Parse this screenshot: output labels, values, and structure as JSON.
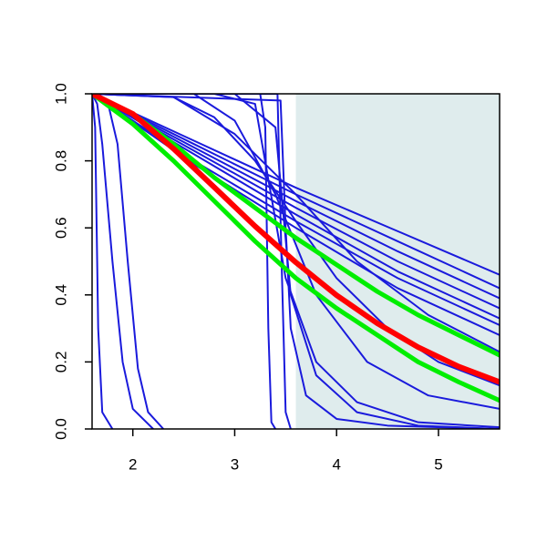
{
  "chart_data": {
    "type": "line",
    "xlim": [
      1.6,
      5.6
    ],
    "ylim": [
      0,
      1
    ],
    "xticks": [
      2,
      3,
      4,
      5
    ],
    "yticks": [
      {
        "value": 0,
        "label": "0.0"
      },
      0.2,
      0.4,
      0.6,
      0.8,
      {
        "value": 1,
        "label": "1.0"
      }
    ],
    "shaded_region": {
      "xmin": 3.6,
      "xmax": 5.6,
      "color": "#dfeced"
    },
    "series": [
      {
        "color": "#1a1adc",
        "width": 2,
        "x": [
          1.6,
          2.6,
          3.6,
          4.6,
          5.6
        ],
        "values": [
          1,
          0.86,
          0.72,
          0.59,
          0.46
        ]
      },
      {
        "color": "#1a1adc",
        "width": 2,
        "x": [
          1.6,
          2.6,
          3.6,
          4.6,
          5.6
        ],
        "values": [
          1,
          0.85,
          0.7,
          0.56,
          0.42
        ]
      },
      {
        "color": "#1a1adc",
        "width": 2,
        "x": [
          1.6,
          2.6,
          3.6,
          4.6,
          5.6
        ],
        "values": [
          1,
          0.84,
          0.68,
          0.53,
          0.39
        ]
      },
      {
        "color": "#1a1adc",
        "width": 2,
        "x": [
          1.6,
          2.6,
          3.6,
          4.6,
          5.6
        ],
        "values": [
          1,
          0.83,
          0.66,
          0.5,
          0.36
        ]
      },
      {
        "color": "#1a1adc",
        "width": 2,
        "x": [
          1.6,
          2.6,
          3.6,
          4.6,
          5.6
        ],
        "values": [
          1,
          0.82,
          0.64,
          0.47,
          0.33
        ]
      },
      {
        "color": "#1a1adc",
        "width": 2,
        "x": [
          1.6,
          2.6,
          3.6,
          4.6,
          5.6
        ],
        "values": [
          1,
          0.8,
          0.62,
          0.45,
          0.31
        ]
      },
      {
        "color": "#1a1adc",
        "width": 2,
        "x": [
          1.6,
          2.6,
          3.6,
          4.6,
          5.6
        ],
        "values": [
          1,
          0.79,
          0.6,
          0.42,
          0.28
        ]
      },
      {
        "color": "#1a1adc",
        "width": 2,
        "x": [
          1.6,
          2.4,
          3.0,
          3.6,
          4.2,
          4.9,
          5.6
        ],
        "values": [
          1,
          0.99,
          0.88,
          0.7,
          0.5,
          0.34,
          0.23
        ]
      },
      {
        "color": "#1a1adc",
        "width": 2,
        "x": [
          1.6,
          2.4,
          2.8,
          3.2,
          3.6,
          4.0,
          4.5,
          5.0,
          5.6
        ],
        "values": [
          1,
          0.99,
          0.93,
          0.8,
          0.62,
          0.45,
          0.3,
          0.2,
          0.13
        ]
      },
      {
        "color": "#1a1adc",
        "width": 2,
        "x": [
          1.6,
          2.6,
          3.0,
          3.4,
          3.8,
          4.3,
          4.9,
          5.6
        ],
        "values": [
          1,
          1,
          0.92,
          0.7,
          0.4,
          0.2,
          0.1,
          0.06
        ]
      },
      {
        "color": "#1a1adc",
        "width": 2,
        "x": [
          1.6,
          1.63,
          1.66,
          1.7,
          1.8
        ],
        "values": [
          1,
          0.9,
          0.3,
          0.05,
          0
        ]
      },
      {
        "color": "#1a1adc",
        "width": 2,
        "x": [
          1.6,
          1.65,
          1.7,
          1.8,
          1.9,
          2.0,
          2.2
        ],
        "values": [
          1,
          0.97,
          0.85,
          0.5,
          0.2,
          0.06,
          0
        ]
      },
      {
        "color": "#1a1adc",
        "width": 2,
        "x": [
          1.6,
          1.75,
          1.85,
          1.95,
          2.05,
          2.15,
          2.3
        ],
        "values": [
          1,
          0.98,
          0.85,
          0.5,
          0.18,
          0.05,
          0
        ]
      },
      {
        "color": "#1a1adc",
        "width": 2,
        "x": [
          1.6,
          3.25,
          3.3,
          3.33,
          3.36,
          3.4
        ],
        "values": [
          1,
          1,
          0.9,
          0.3,
          0.02,
          0
        ]
      },
      {
        "color": "#1a1adc",
        "width": 2,
        "x": [
          1.6,
          3.42,
          3.46,
          3.5,
          3.55
        ],
        "values": [
          1,
          1,
          0.5,
          0.05,
          0
        ]
      },
      {
        "color": "#1a1adc",
        "width": 2,
        "x": [
          1.6,
          3.45,
          3.5,
          3.55,
          3.7,
          4.0,
          4.5,
          5.6
        ],
        "values": [
          1,
          0.98,
          0.6,
          0.3,
          0.1,
          0.03,
          0.01,
          0
        ]
      },
      {
        "color": "#1a1adc",
        "width": 2,
        "x": [
          1.6,
          2.8,
          3.2,
          3.5,
          3.8,
          4.2,
          4.8,
          5.6
        ],
        "values": [
          1,
          1,
          0.97,
          0.45,
          0.2,
          0.08,
          0.02,
          0.005
        ]
      },
      {
        "color": "#1a1adc",
        "width": 2,
        "x": [
          1.6,
          3.0,
          3.4,
          3.55,
          3.8,
          4.2,
          4.8,
          5.6
        ],
        "values": [
          1,
          1,
          0.9,
          0.4,
          0.16,
          0.05,
          0.01,
          0
        ]
      },
      {
        "color": "#00ee00",
        "width": 5,
        "x": [
          1.6,
          2.0,
          2.4,
          2.8,
          3.2,
          3.6,
          4.0,
          4.4,
          4.8,
          5.2,
          5.6
        ],
        "values": [
          1,
          0.94,
          0.85,
          0.75,
          0.66,
          0.57,
          0.49,
          0.41,
          0.34,
          0.28,
          0.22
        ]
      },
      {
        "color": "#00ee00",
        "width": 5,
        "x": [
          1.6,
          2.0,
          2.4,
          2.8,
          3.2,
          3.6,
          4.0,
          4.4,
          4.8,
          5.2,
          5.6
        ],
        "values": [
          1,
          0.91,
          0.8,
          0.68,
          0.56,
          0.45,
          0.36,
          0.28,
          0.2,
          0.14,
          0.085
        ]
      },
      {
        "color": "#ff0000",
        "width": 6,
        "x": [
          1.6,
          2.0,
          2.4,
          2.8,
          3.2,
          3.6,
          4.0,
          4.4,
          4.8,
          5.2,
          5.6
        ],
        "values": [
          1,
          0.94,
          0.836,
          0.721,
          0.605,
          0.497,
          0.399,
          0.315,
          0.244,
          0.186,
          0.14
        ]
      }
    ]
  }
}
